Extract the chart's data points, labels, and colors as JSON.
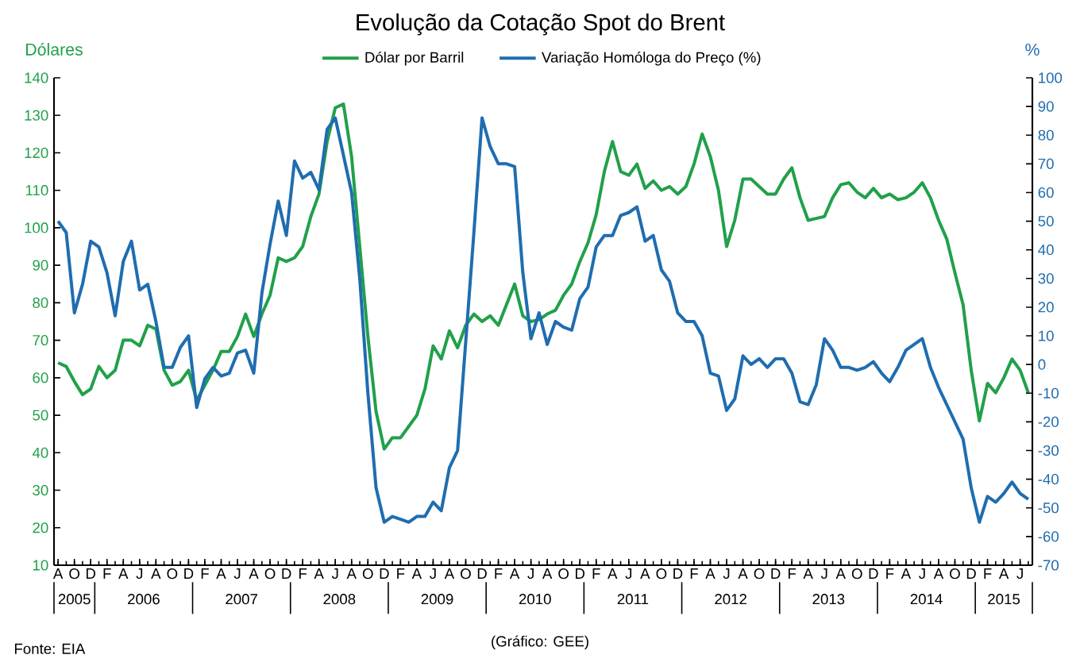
{
  "chart_data": {
    "type": "line",
    "title": "Evolução da Cotação Spot do Brent",
    "ylabel": "Dólares",
    "y2label": "%",
    "legend": "top",
    "categories": [
      "A",
      null,
      "O",
      null,
      "D",
      null,
      "F",
      null,
      "A",
      null,
      "J",
      null,
      "A",
      null,
      "O",
      null,
      "D",
      null,
      "F",
      null,
      "A",
      null,
      "J",
      null,
      "A",
      null,
      "O",
      null,
      "D",
      null,
      "F",
      null,
      "A",
      null,
      "J",
      null,
      "A",
      null,
      "O",
      null,
      "D",
      null,
      "F",
      null,
      "A",
      null,
      "J",
      null,
      "A",
      null,
      "O",
      null,
      "D",
      null,
      "F",
      null,
      "A",
      null,
      "J",
      null,
      "A",
      null,
      "O",
      null,
      "D",
      null,
      "F",
      null,
      "A",
      null,
      "J",
      null,
      "A",
      null,
      "O",
      null,
      "D",
      null,
      "F",
      null,
      "A",
      null,
      "J",
      null,
      "A",
      null,
      "O",
      null,
      "D",
      null,
      "F",
      null,
      "A",
      null,
      "J",
      null,
      "A",
      null,
      "O",
      null,
      "D",
      null,
      "F",
      null,
      "A",
      null,
      "J",
      null,
      "A",
      null,
      "O",
      null,
      "D",
      null,
      "F",
      null,
      "A",
      null,
      "J",
      null
    ],
    "ylim": [
      10,
      140
    ],
    "yticks": [
      10,
      20,
      30,
      40,
      50,
      60,
      70,
      80,
      90,
      100,
      110,
      120,
      130,
      140
    ],
    "y2lim": [
      -70,
      100
    ],
    "y2ticks": [
      -70,
      -60,
      -50,
      -40,
      -30,
      -20,
      -10,
      0,
      10,
      20,
      30,
      40,
      50,
      60,
      70,
      80,
      90,
      100
    ],
    "series": [
      {
        "name": "Dólar por Barril",
        "color": "#21a04a",
        "values": [
          64,
          63,
          59,
          55.5,
          57,
          63,
          60,
          62,
          70,
          70,
          68.5,
          74,
          73,
          62,
          58,
          59,
          62,
          54,
          58,
          62,
          67,
          67,
          71,
          77,
          71,
          77,
          82,
          92,
          91,
          92,
          95,
          103,
          109,
          123,
          132,
          133,
          119,
          95,
          71,
          51,
          41,
          44,
          44,
          47,
          50,
          57,
          68.5,
          65,
          72.5,
          68,
          74,
          77,
          75,
          76.5,
          74,
          79.5,
          85,
          76.5,
          75,
          75.5,
          77,
          78,
          82,
          85,
          91,
          96,
          103.5,
          115,
          123,
          115,
          114,
          117,
          110.5,
          112.5,
          110,
          111,
          109,
          111,
          117,
          125,
          119,
          110,
          95,
          102,
          113,
          113,
          111,
          109,
          109,
          113,
          116,
          108,
          102,
          102.5,
          103,
          108,
          111.5,
          112,
          109.5,
          108,
          110.5,
          108,
          109,
          107.5,
          108,
          109.5,
          112,
          108,
          102,
          97,
          88,
          79.5,
          62,
          48.5,
          58.5,
          56,
          60,
          65,
          62,
          56
        ]
      },
      {
        "name": "Variação Homóloga do Preço (%)",
        "color": "#1f6db0",
        "axis": "y2",
        "values": [
          50,
          46,
          18,
          28,
          43,
          41,
          32,
          17,
          36,
          43,
          26,
          28,
          15,
          -1,
          -1,
          6,
          10,
          -15,
          -5,
          -1,
          -4,
          -3,
          4,
          5,
          -3,
          25,
          42,
          57,
          45,
          71,
          65,
          67,
          61,
          82,
          86,
          73,
          60,
          30,
          -10,
          -43,
          -55,
          -53,
          -54,
          -55,
          -53,
          -53,
          -48,
          -51,
          -36,
          -30,
          8,
          46,
          86,
          76,
          70,
          70,
          69,
          32,
          9,
          18,
          7,
          15,
          13,
          12,
          23,
          27,
          41,
          45,
          45,
          52,
          53,
          55,
          43,
          45,
          33,
          29,
          18,
          15,
          15,
          10,
          -3,
          -4,
          -16,
          -12,
          3,
          0,
          2,
          -1,
          2,
          2,
          -3,
          -13,
          -14,
          -7,
          9,
          5,
          -1,
          -1,
          -2,
          -1,
          1,
          -3,
          -6,
          -1,
          5,
          7,
          9,
          -1,
          -8,
          -14,
          -20,
          -26,
          -43,
          -55,
          -46,
          -48,
          -45,
          -41,
          -45,
          -47
        ]
      }
    ],
    "annotations": [
      "Fonte: EIA",
      "(Gráfico: GEE)",
      "2005",
      "2006",
      "2007",
      "2008",
      "2009",
      "2010",
      "2011",
      "2012",
      "2013",
      "2014",
      "2015"
    ]
  }
}
